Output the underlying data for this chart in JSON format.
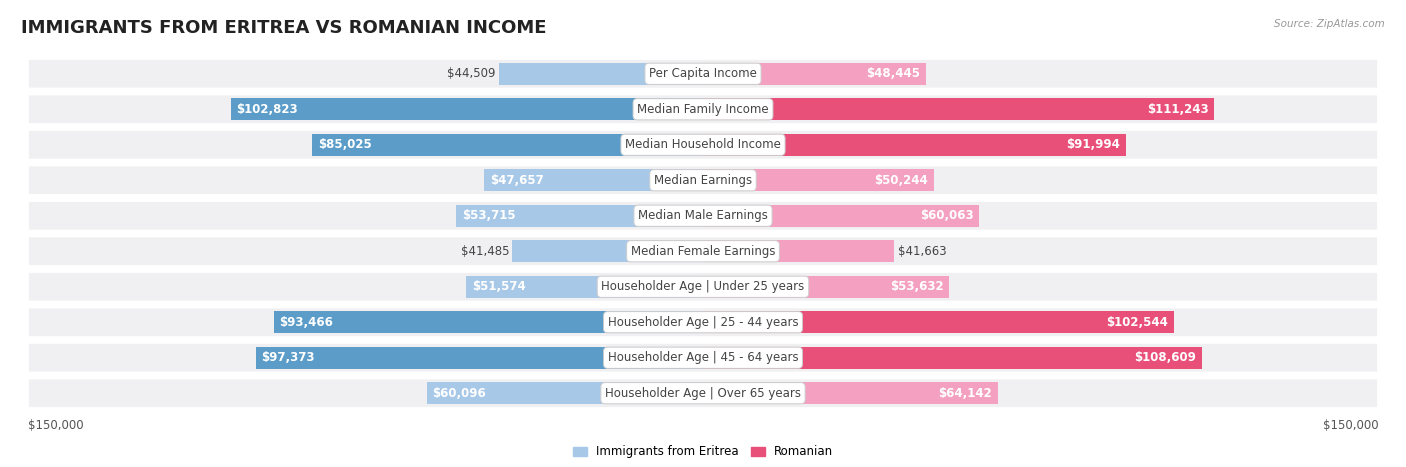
{
  "title": "IMMIGRANTS FROM ERITREA VS ROMANIAN INCOME",
  "source": "Source: ZipAtlas.com",
  "categories": [
    "Per Capita Income",
    "Median Family Income",
    "Median Household Income",
    "Median Earnings",
    "Median Male Earnings",
    "Median Female Earnings",
    "Householder Age | Under 25 years",
    "Householder Age | 25 - 44 years",
    "Householder Age | 45 - 64 years",
    "Householder Age | Over 65 years"
  ],
  "eritrea_values": [
    44509,
    102823,
    85025,
    47657,
    53715,
    41485,
    51574,
    93466,
    97373,
    60096
  ],
  "romanian_values": [
    48445,
    111243,
    91994,
    50244,
    60063,
    41663,
    53632,
    102544,
    108609,
    64142
  ],
  "eritrea_labels": [
    "$44,509",
    "$102,823",
    "$85,025",
    "$47,657",
    "$53,715",
    "$41,485",
    "$51,574",
    "$93,466",
    "$97,373",
    "$60,096"
  ],
  "romanian_labels": [
    "$48,445",
    "$111,243",
    "$91,994",
    "$50,244",
    "$60,063",
    "$41,663",
    "$53,632",
    "$102,544",
    "$108,609",
    "$64,142"
  ],
  "eritrea_color_light": "#a8c8e8",
  "eritrea_color_dark": "#5b9dc8",
  "romanian_color_light": "#f4a0c0",
  "romanian_color_dark": "#e8507a",
  "max_value": 150000,
  "bar_height": 0.62,
  "row_bg": "#f0f0f2",
  "title_fontsize": 13,
  "cat_fontsize": 8.5,
  "val_fontsize": 8.5,
  "axis_label": "$150,000",
  "legend_eritrea": "Immigrants from Eritrea",
  "legend_romanian": "Romanian",
  "white_label_threshold": 65000,
  "n_rows": 10
}
